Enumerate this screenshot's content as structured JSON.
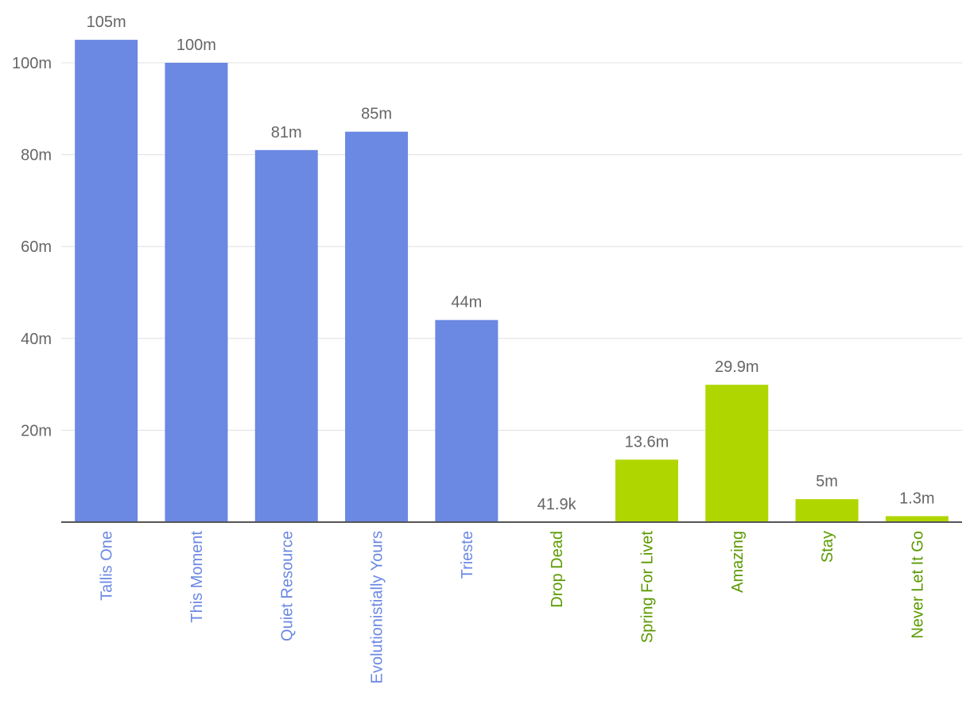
{
  "chart_data": {
    "type": "bar",
    "categories": [
      "Tallis One",
      "This Moment",
      "Quiet Resource",
      "Evolutionistially Yours",
      "Trieste",
      "Drop Dead",
      "Spring For Livet",
      "Amazing",
      "Stay",
      "Never Let It Go"
    ],
    "values": [
      105000000,
      100000000,
      81000000,
      85000000,
      44000000,
      41900,
      13600000,
      29900000,
      5000000,
      1300000
    ],
    "value_labels": [
      "105m",
      "100m",
      "81m",
      "85m",
      "44m",
      "41.9k",
      "13.6m",
      "29.9m",
      "5m",
      "1.3m"
    ],
    "groups": [
      "blue",
      "blue",
      "blue",
      "blue",
      "blue",
      "green",
      "green",
      "green",
      "green",
      "green"
    ],
    "colors": {
      "blue_bar": "#6b88e3",
      "blue_label": "#6b88e3",
      "green_bar": "#b0d600",
      "green_label": "#5a9a00",
      "grid": "#e0e0e0",
      "axis": "#555555",
      "text": "#666666"
    },
    "y_ticks": [
      {
        "value": 20000000,
        "label": "20m"
      },
      {
        "value": 40000000,
        "label": "40m"
      },
      {
        "value": 60000000,
        "label": "60m"
      },
      {
        "value": 80000000,
        "label": "80m"
      },
      {
        "value": 100000000,
        "label": "100m"
      }
    ],
    "ylim": [
      0,
      105000000
    ],
    "grid": true,
    "title": "",
    "xlabel": "",
    "ylabel": ""
  }
}
